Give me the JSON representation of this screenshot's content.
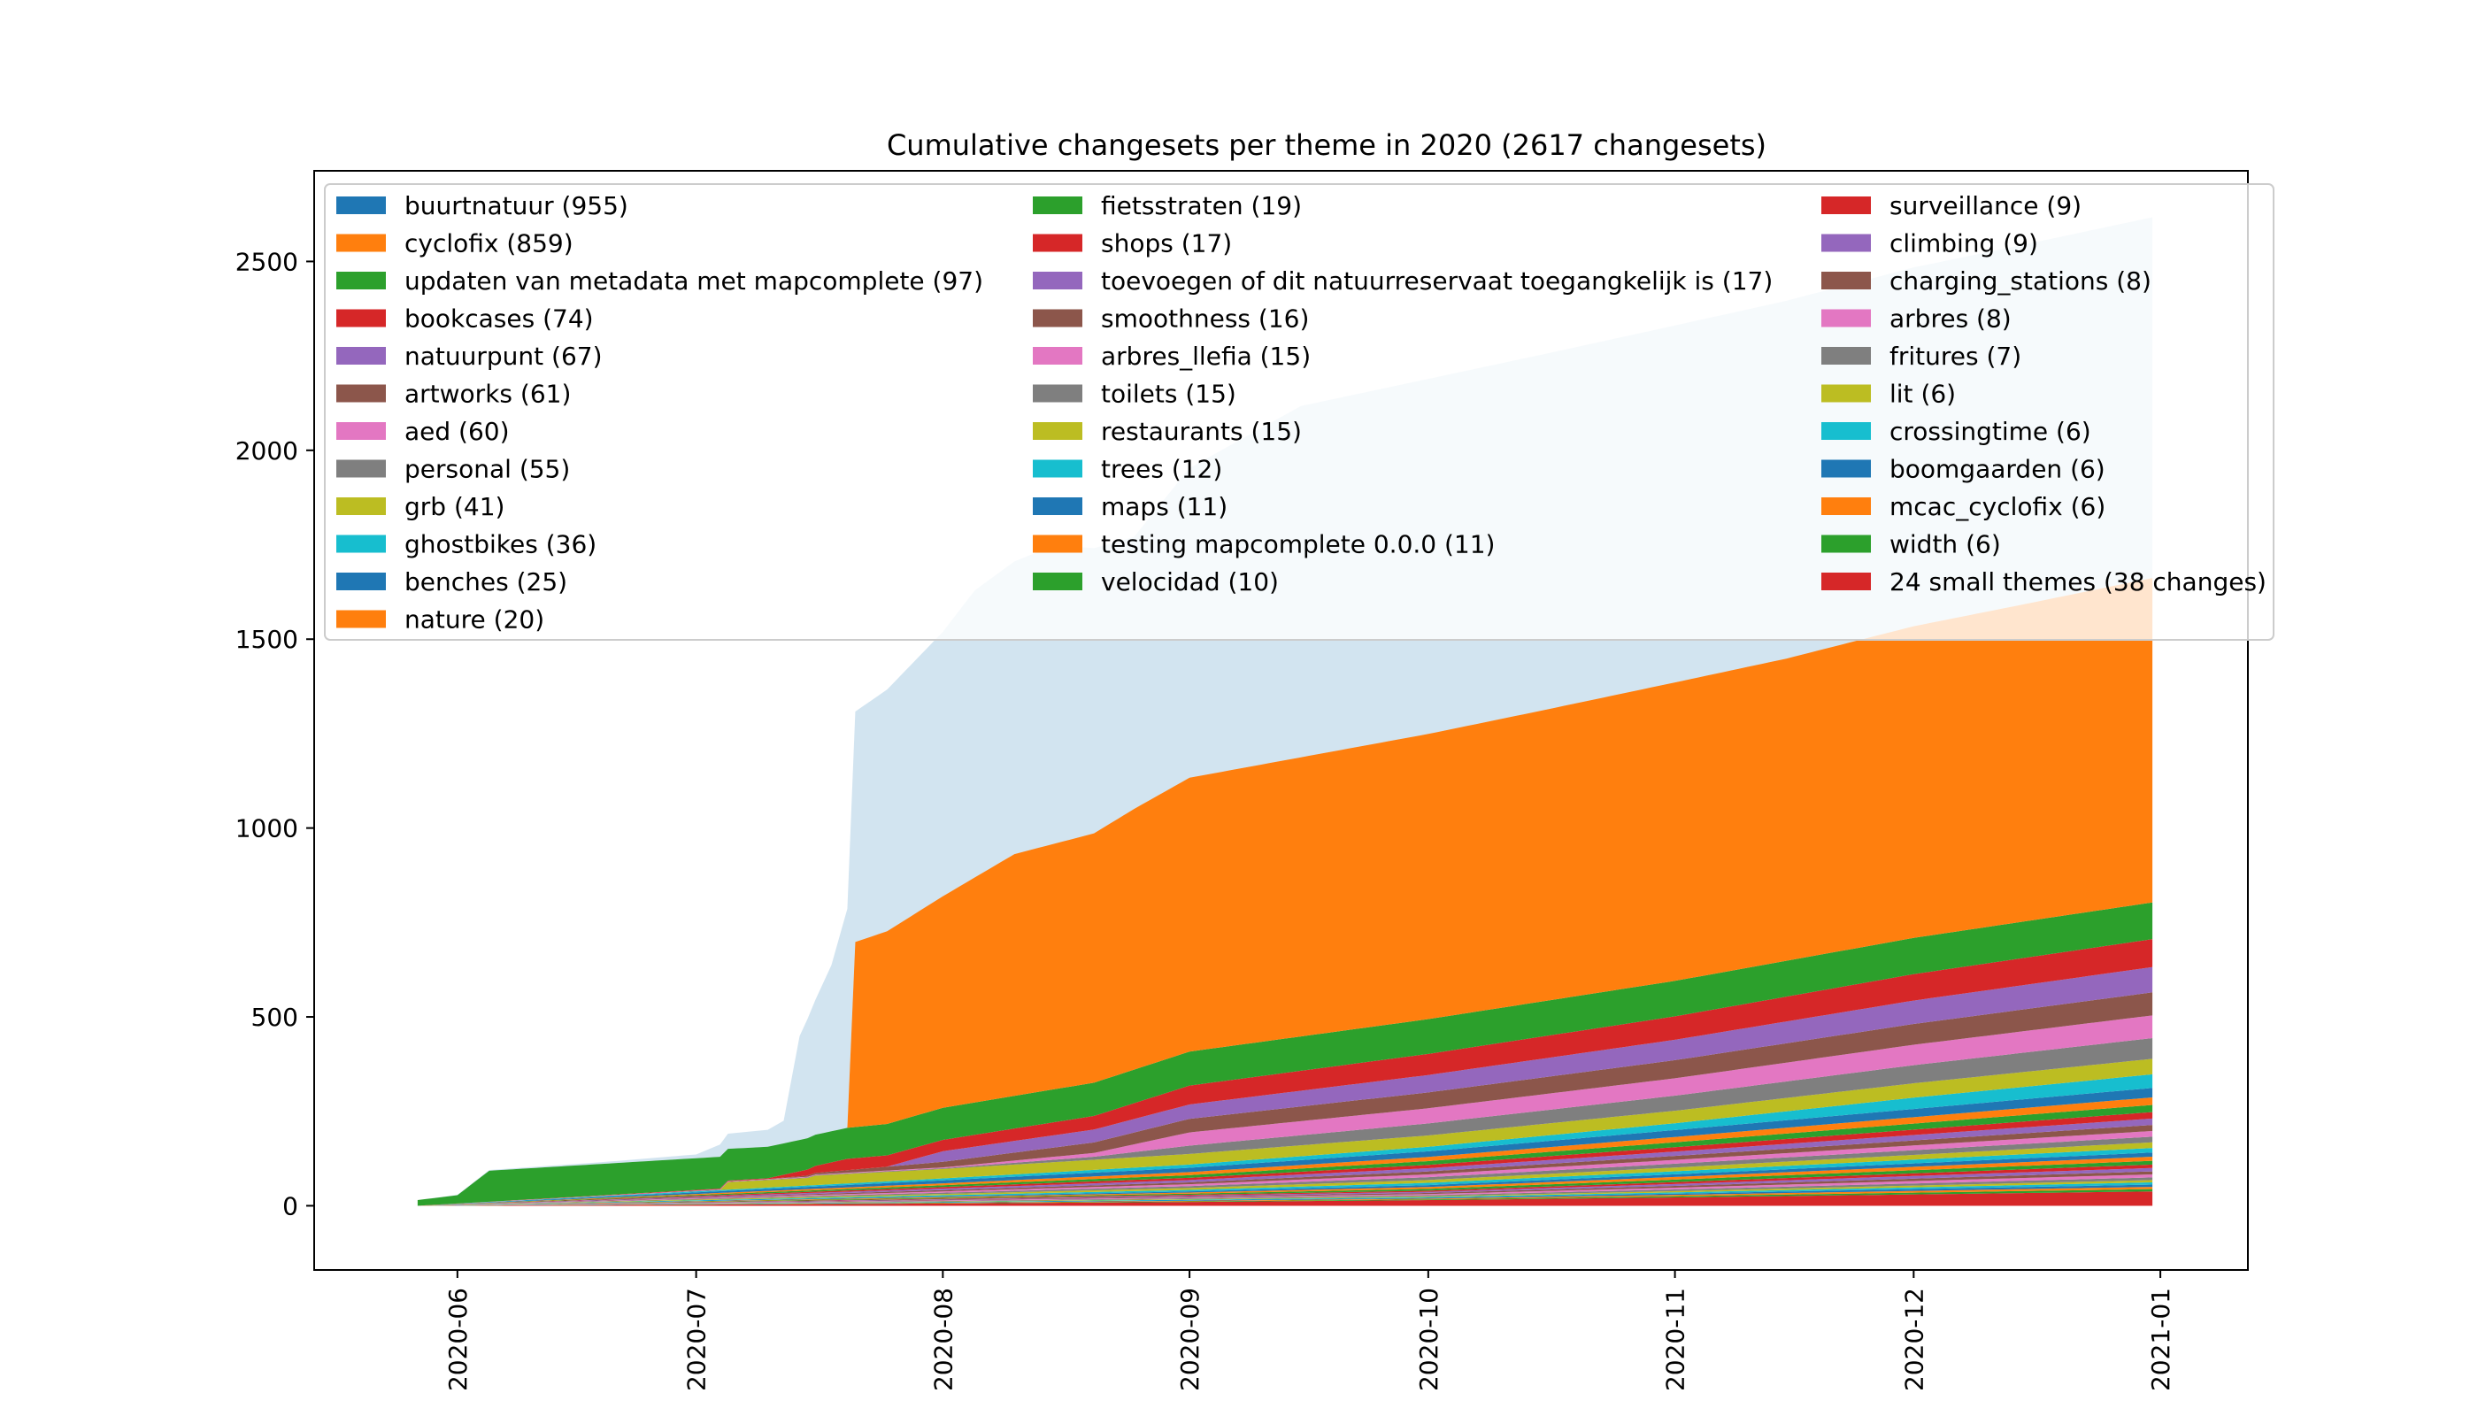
{
  "chart_data": {
    "type": "area",
    "title": "Cumulative changesets per theme in 2020 (2617 changesets)",
    "xlabel": "",
    "ylabel": "",
    "x_range": [
      "2020-05-14",
      "2021-01-12"
    ],
    "ylim": [
      -170,
      2740
    ],
    "yticks": [
      0,
      500,
      1000,
      1500,
      2000,
      2500
    ],
    "xticks": [
      "2020-06",
      "2020-07",
      "2020-08",
      "2020-09",
      "2020-10",
      "2020-11",
      "2020-12",
      "2021-01"
    ],
    "grid": false,
    "legend_position": "top",
    "legend_columns": 3,
    "stack_order": "bottom-to-top",
    "series": [
      {
        "name": "24 small themes (38 changes)",
        "color": "#d62728",
        "alpha": 1,
        "points": [
          [
            "2020-05-27",
            0
          ],
          [
            "2020-07-01",
            3
          ],
          [
            "2020-08-01",
            6
          ],
          [
            "2020-09-01",
            10
          ],
          [
            "2020-10-01",
            15
          ],
          [
            "2020-11-01",
            22
          ],
          [
            "2020-12-01",
            30
          ],
          [
            "2020-12-31",
            38
          ]
        ]
      },
      {
        "name": "width (6)",
        "color": "#2ca02c",
        "alpha": 1,
        "points": [
          [
            "2020-05-27",
            0
          ],
          [
            "2020-10-01",
            2
          ],
          [
            "2020-12-31",
            6
          ]
        ]
      },
      {
        "name": "mcac_cyclofix (6)",
        "color": "#ff7f0e",
        "alpha": 1,
        "points": [
          [
            "2020-05-27",
            0
          ],
          [
            "2020-10-01",
            2
          ],
          [
            "2020-12-31",
            6
          ]
        ]
      },
      {
        "name": "boomgaarden (6)",
        "color": "#1f77b4",
        "alpha": 1,
        "points": [
          [
            "2020-05-27",
            0
          ],
          [
            "2020-10-01",
            2
          ],
          [
            "2020-12-31",
            6
          ]
        ]
      },
      {
        "name": "crossingtime (6)",
        "color": "#17becf",
        "alpha": 1,
        "points": [
          [
            "2020-05-27",
            0
          ],
          [
            "2020-10-01",
            2
          ],
          [
            "2020-12-31",
            6
          ]
        ]
      },
      {
        "name": "lit (6)",
        "color": "#bcbd22",
        "alpha": 1,
        "points": [
          [
            "2020-05-27",
            0
          ],
          [
            "2020-10-01",
            2
          ],
          [
            "2020-12-31",
            6
          ]
        ]
      },
      {
        "name": "fritures (7)",
        "color": "#7f7f7f",
        "alpha": 1,
        "points": [
          [
            "2020-05-27",
            0
          ],
          [
            "2020-10-01",
            3
          ],
          [
            "2020-12-31",
            7
          ]
        ]
      },
      {
        "name": "arbres (8)",
        "color": "#e377c2",
        "alpha": 1,
        "points": [
          [
            "2020-05-27",
            0
          ],
          [
            "2020-10-01",
            3
          ],
          [
            "2020-12-31",
            8
          ]
        ]
      },
      {
        "name": "charging_stations (8)",
        "color": "#8c564b",
        "alpha": 1,
        "points": [
          [
            "2020-05-27",
            0
          ],
          [
            "2020-10-01",
            3
          ],
          [
            "2020-12-31",
            8
          ]
        ]
      },
      {
        "name": "climbing (9)",
        "color": "#9467bd",
        "alpha": 1,
        "points": [
          [
            "2020-05-27",
            0
          ],
          [
            "2020-10-01",
            3
          ],
          [
            "2020-12-31",
            9
          ]
        ]
      },
      {
        "name": "surveillance (9)",
        "color": "#d62728",
        "alpha": 1,
        "points": [
          [
            "2020-05-27",
            0
          ],
          [
            "2020-10-01",
            3
          ],
          [
            "2020-12-31",
            9
          ]
        ]
      },
      {
        "name": "velocidad (10)",
        "color": "#2ca02c",
        "alpha": 1,
        "points": [
          [
            "2020-05-27",
            0
          ],
          [
            "2020-09-01",
            3
          ],
          [
            "2020-12-31",
            10
          ]
        ]
      },
      {
        "name": "testing mapcomplete 0.0.0 (11)",
        "color": "#ff7f0e",
        "alpha": 1,
        "points": [
          [
            "2020-05-27",
            0
          ],
          [
            "2020-09-01",
            3
          ],
          [
            "2020-12-31",
            11
          ]
        ]
      },
      {
        "name": "maps (11)",
        "color": "#1f77b4",
        "alpha": 1,
        "points": [
          [
            "2020-05-27",
            0
          ],
          [
            "2020-09-01",
            3
          ],
          [
            "2020-12-31",
            11
          ]
        ]
      },
      {
        "name": "trees (12)",
        "color": "#17becf",
        "alpha": 1,
        "points": [
          [
            "2020-05-27",
            0
          ],
          [
            "2020-09-01",
            4
          ],
          [
            "2020-12-31",
            12
          ]
        ]
      },
      {
        "name": "restaurants (15)",
        "color": "#bcbd22",
        "alpha": 1,
        "points": [
          [
            "2020-05-27",
            0
          ],
          [
            "2020-09-01",
            5
          ],
          [
            "2020-12-31",
            15
          ]
        ]
      },
      {
        "name": "toilets (15)",
        "color": "#7f7f7f",
        "alpha": 1,
        "points": [
          [
            "2020-05-27",
            0
          ],
          [
            "2020-09-01",
            5
          ],
          [
            "2020-12-31",
            15
          ]
        ]
      },
      {
        "name": "arbres_llefia (15)",
        "color": "#e377c2",
        "alpha": 1,
        "points": [
          [
            "2020-05-27",
            0
          ],
          [
            "2020-09-01",
            5
          ],
          [
            "2020-12-31",
            15
          ]
        ]
      },
      {
        "name": "smoothness (16)",
        "color": "#8c564b",
        "alpha": 1,
        "points": [
          [
            "2020-05-27",
            0
          ],
          [
            "2020-09-01",
            5
          ],
          [
            "2020-12-31",
            16
          ]
        ]
      },
      {
        "name": "toevoegen of dit natuurreservaat toegangkelijk is (17)",
        "color": "#9467bd",
        "alpha": 1,
        "points": [
          [
            "2020-05-27",
            0
          ],
          [
            "2020-09-01",
            6
          ],
          [
            "2020-12-31",
            17
          ]
        ]
      },
      {
        "name": "shops (17)",
        "color": "#d62728",
        "alpha": 1,
        "points": [
          [
            "2020-05-27",
            0
          ],
          [
            "2020-09-01",
            6
          ],
          [
            "2020-12-31",
            17
          ]
        ]
      },
      {
        "name": "fietsstraten (19)",
        "color": "#2ca02c",
        "alpha": 1,
        "points": [
          [
            "2020-05-27",
            0
          ],
          [
            "2020-09-01",
            7
          ],
          [
            "2020-12-31",
            19
          ]
        ]
      },
      {
        "name": "nature (20)",
        "color": "#ff7f0e",
        "alpha": 1,
        "points": [
          [
            "2020-05-27",
            0
          ],
          [
            "2020-08-01",
            5
          ],
          [
            "2020-12-31",
            20
          ]
        ]
      },
      {
        "name": "benches (25)",
        "color": "#1f77b4",
        "alpha": 1,
        "points": [
          [
            "2020-05-27",
            0
          ],
          [
            "2020-08-01",
            8
          ],
          [
            "2020-12-31",
            25
          ]
        ]
      },
      {
        "name": "ghostbikes (36)",
        "color": "#17becf",
        "alpha": 1,
        "points": [
          [
            "2020-05-27",
            0
          ],
          [
            "2020-08-01",
            5
          ],
          [
            "2020-10-01",
            12
          ],
          [
            "2020-11-01",
            18
          ],
          [
            "2020-12-01",
            30
          ],
          [
            "2020-12-31",
            36
          ]
        ]
      },
      {
        "name": "grb (41)",
        "color": "#bcbd22",
        "alpha": 1,
        "points": [
          [
            "2020-05-27",
            0
          ],
          [
            "2020-07-04",
            0
          ],
          [
            "2020-07-05",
            20
          ],
          [
            "2020-07-15",
            20
          ],
          [
            "2020-07-16",
            25
          ],
          [
            "2020-08-01",
            25
          ],
          [
            "2020-08-10",
            26
          ],
          [
            "2020-09-01",
            28
          ],
          [
            "2020-10-01",
            30
          ],
          [
            "2020-11-01",
            33
          ],
          [
            "2020-12-01",
            38
          ],
          [
            "2020-12-31",
            41
          ]
        ]
      },
      {
        "name": "personal (55)",
        "color": "#7f7f7f",
        "alpha": 1,
        "points": [
          [
            "2020-05-27",
            0
          ],
          [
            "2020-08-01",
            2
          ],
          [
            "2020-08-20",
            8
          ],
          [
            "2020-09-01",
            22
          ],
          [
            "2020-10-01",
            32
          ],
          [
            "2020-11-01",
            40
          ],
          [
            "2020-12-01",
            48
          ],
          [
            "2020-12-31",
            55
          ]
        ]
      },
      {
        "name": "aed (60)",
        "color": "#e377c2",
        "alpha": 1,
        "points": [
          [
            "2020-05-27",
            0
          ],
          [
            "2020-08-01",
            2
          ],
          [
            "2020-08-20",
            10
          ],
          [
            "2020-09-01",
            35
          ],
          [
            "2020-10-01",
            40
          ],
          [
            "2020-11-01",
            46
          ],
          [
            "2020-12-01",
            54
          ],
          [
            "2020-12-31",
            60
          ]
        ]
      },
      {
        "name": "artworks (61)",
        "color": "#8c564b",
        "alpha": 1,
        "points": [
          [
            "2020-05-27",
            0
          ],
          [
            "2020-07-10",
            0
          ],
          [
            "2020-08-01",
            15
          ],
          [
            "2020-09-01",
            36
          ],
          [
            "2020-10-01",
            42
          ],
          [
            "2020-11-01",
            48
          ],
          [
            "2020-12-01",
            55
          ],
          [
            "2020-12-31",
            61
          ]
        ]
      },
      {
        "name": "natuurpunt (67)",
        "color": "#9467bd",
        "alpha": 1,
        "points": [
          [
            "2020-05-27",
            0
          ],
          [
            "2020-07-25",
            0
          ],
          [
            "2020-08-01",
            28
          ],
          [
            "2020-09-01",
            38
          ],
          [
            "2020-10-01",
            46
          ],
          [
            "2020-11-01",
            54
          ],
          [
            "2020-12-01",
            62
          ],
          [
            "2020-12-31",
            67
          ]
        ]
      },
      {
        "name": "bookcases (74)",
        "color": "#d62728",
        "alpha": 1,
        "points": [
          [
            "2020-05-27",
            0
          ],
          [
            "2020-07-10",
            2
          ],
          [
            "2020-07-20",
            30
          ],
          [
            "2020-08-01",
            30
          ],
          [
            "2020-08-20",
            36
          ],
          [
            "2020-09-01",
            50
          ],
          [
            "2020-10-01",
            56
          ],
          [
            "2020-11-01",
            62
          ],
          [
            "2020-12-01",
            70
          ],
          [
            "2020-12-31",
            74
          ]
        ]
      },
      {
        "name": "updaten van metadata met mapcomplete (97)",
        "color": "#2ca02c",
        "alpha": 1,
        "points": [
          [
            "2020-05-27",
            15
          ],
          [
            "2020-06-01",
            22
          ],
          [
            "2020-06-05",
            82
          ],
          [
            "2020-07-01",
            84
          ],
          [
            "2020-07-05",
            84
          ],
          [
            "2020-07-20",
            82
          ],
          [
            "2020-08-01",
            85
          ],
          [
            "2020-09-01",
            90
          ],
          [
            "2020-10-01",
            92
          ],
          [
            "2020-11-01",
            94
          ],
          [
            "2020-12-01",
            96
          ],
          [
            "2020-12-31",
            97
          ]
        ]
      },
      {
        "name": "cyclofix (859)",
        "color": "#ff7f0e",
        "alpha": 1,
        "points": [
          [
            "2020-05-27",
            0
          ],
          [
            "2020-07-20",
            0
          ],
          [
            "2020-07-21",
            490
          ],
          [
            "2020-07-25",
            510
          ],
          [
            "2020-08-01",
            560
          ],
          [
            "2020-08-10",
            640
          ],
          [
            "2020-08-20",
            660
          ],
          [
            "2020-08-25",
            690
          ],
          [
            "2020-09-01",
            725
          ],
          [
            "2020-10-01",
            755
          ],
          [
            "2020-10-15",
            770
          ],
          [
            "2020-11-01",
            790
          ],
          [
            "2020-11-15",
            800
          ],
          [
            "2020-12-01",
            825
          ],
          [
            "2020-12-15",
            840
          ],
          [
            "2020-12-31",
            859
          ]
        ]
      },
      {
        "name": "buurtnatuur (955)",
        "color": "#1f77b4",
        "alpha": 0.2,
        "points": [
          [
            "2020-05-27",
            0
          ],
          [
            "2020-06-20",
            5
          ],
          [
            "2020-07-01",
            10
          ],
          [
            "2020-07-05",
            40
          ],
          [
            "2020-07-10",
            45
          ],
          [
            "2020-07-12",
            60
          ],
          [
            "2020-07-14",
            275
          ],
          [
            "2020-07-18",
            440
          ],
          [
            "2020-07-20",
            580
          ],
          [
            "2020-07-21",
            610
          ],
          [
            "2020-07-25",
            640
          ],
          [
            "2020-08-01",
            700
          ],
          [
            "2020-08-05",
            760
          ],
          [
            "2020-08-15",
            790
          ],
          [
            "2020-08-25",
            720
          ],
          [
            "2020-09-01",
            820
          ],
          [
            "2020-09-15",
            930
          ],
          [
            "2020-10-01",
            940
          ],
          [
            "2020-11-01",
            945
          ],
          [
            "2020-12-01",
            950
          ],
          [
            "2020-12-31",
            955
          ]
        ]
      }
    ],
    "legend": {
      "columns": [
        [
          "buurtnatuur (955)",
          "cyclofix (859)",
          "updaten van metadata met mapcomplete (97)",
          "bookcases (74)",
          "natuurpunt (67)",
          "artworks (61)",
          "aed (60)",
          "personal (55)",
          "grb (41)",
          "ghostbikes (36)",
          "benches (25)",
          "nature (20)"
        ],
        [
          "fietsstraten (19)",
          "shops (17)",
          "toevoegen of dit natuurreservaat toegangkelijk is (17)",
          "smoothness (16)",
          "arbres_llefia (15)",
          "toilets (15)",
          "restaurants (15)",
          "trees (12)",
          "maps (11)",
          "testing mapcomplete 0.0.0 (11)",
          "velocidad (10)"
        ],
        [
          "surveillance (9)",
          "climbing (9)",
          "charging_stations (8)",
          "arbres (8)",
          "fritures (7)",
          "lit (6)",
          "crossingtime (6)",
          "boomgaarden (6)",
          "mcac_cyclofix (6)",
          "width (6)",
          "24 small themes (38 changes)"
        ]
      ]
    }
  }
}
